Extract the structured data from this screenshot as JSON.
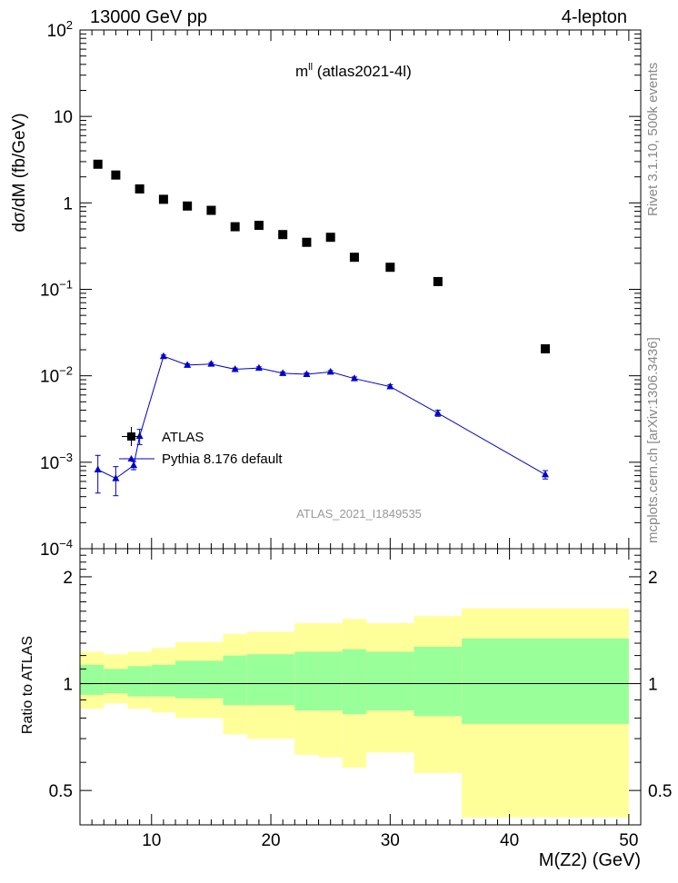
{
  "header": {
    "left": "13000 GeV pp",
    "right": "4-lepton"
  },
  "side_labels": {
    "rivet": "Rivet 3.1.10,  500k events",
    "mcplots": "mcplots.cern.ch [arXiv:1306.3436]"
  },
  "plot_title": {
    "main": "m",
    "sup": "ll",
    "suffix": " (atlas2021-4l)"
  },
  "analysis_label": "ATLAS_2021_I1849535",
  "legend": {
    "data": "ATLAS",
    "mc": "Pythia 8.176 default"
  },
  "axes": {
    "main_ylabel": "dσ/dM (fb/GeV)",
    "ratio_ylabel": "Ratio to ATLAS",
    "xlabel": "M(Z2) (GeV)"
  },
  "tick_labels": {
    "x": [
      "10",
      "20",
      "30",
      "40",
      "50"
    ],
    "main_y": [
      {
        "base": "10",
        "exp": "2"
      },
      {
        "base": "10",
        "exp": ""
      },
      {
        "base": "1",
        "exp": ""
      },
      {
        "base": "10",
        "exp": "−1"
      },
      {
        "base": "10",
        "exp": "−2"
      },
      {
        "base": "10",
        "exp": "−3"
      },
      {
        "base": "10",
        "exp": "−4"
      }
    ],
    "ratio_y": [
      "2",
      "1",
      "0.5"
    ]
  },
  "colors": {
    "data": "#000000",
    "mc": "#0000cc",
    "band_inner": "#99ff99",
    "band_outer": "#ffff99",
    "side_text": "#888888"
  },
  "chart_data": [
    {
      "type": "scatter",
      "role": "main",
      "xlim": [
        4,
        51
      ],
      "ylim": [
        0.0001,
        100
      ],
      "yscale": "log",
      "series": [
        {
          "name": "ATLAS",
          "marker": "square",
          "x": [
            5.5,
            7,
            9,
            11,
            13,
            15,
            17,
            19,
            21,
            23,
            25,
            27,
            30,
            34,
            43
          ],
          "y": [
            2.8,
            2.1,
            1.45,
            1.1,
            0.92,
            0.82,
            0.53,
            0.55,
            0.43,
            0.35,
            0.4,
            0.235,
            0.18,
            0.123,
            0.0205
          ]
        },
        {
          "name": "Pythia 8.176 default",
          "marker": "triangle",
          "x": [
            5.5,
            7,
            8.5,
            9,
            11,
            13,
            15,
            17,
            19,
            21,
            23,
            25,
            27,
            30,
            34,
            43
          ],
          "y": [
            0.00082,
            0.00065,
            0.00092,
            0.002,
            0.0168,
            0.0133,
            0.0137,
            0.0119,
            0.0123,
            0.0107,
            0.0104,
            0.0111,
            0.0093,
            0.0075,
            0.0037,
            0.00072
          ],
          "yerr": [
            0.00038,
            0.00024,
            0.0001,
            0.0004,
            0.0006,
            0.0005,
            0.0005,
            0.0004,
            0.0004,
            0.0004,
            0.0004,
            0.0004,
            0.0004,
            0.0004,
            0.0003,
            8e-05
          ]
        }
      ]
    },
    {
      "type": "area",
      "role": "ratio",
      "xlim": [
        4,
        51
      ],
      "ylim": [
        0.4,
        2.4
      ],
      "yscale": "log",
      "reference_line": 1,
      "bins": [
        {
          "lo": 4,
          "hi": 6,
          "inner": [
            0.93,
            1.13
          ],
          "outer": [
            0.85,
            1.23
          ]
        },
        {
          "lo": 6,
          "hi": 8,
          "inner": [
            0.94,
            1.1
          ],
          "outer": [
            0.88,
            1.21
          ]
        },
        {
          "lo": 8,
          "hi": 10,
          "inner": [
            0.92,
            1.12
          ],
          "outer": [
            0.85,
            1.23
          ]
        },
        {
          "lo": 10,
          "hi": 12,
          "inner": [
            0.92,
            1.13
          ],
          "outer": [
            0.83,
            1.26
          ]
        },
        {
          "lo": 12,
          "hi": 16,
          "inner": [
            0.91,
            1.16
          ],
          "outer": [
            0.8,
            1.31
          ]
        },
        {
          "lo": 16,
          "hi": 18,
          "inner": [
            0.87,
            1.2
          ],
          "outer": [
            0.72,
            1.38
          ]
        },
        {
          "lo": 18,
          "hi": 22,
          "inner": [
            0.87,
            1.21
          ],
          "outer": [
            0.7,
            1.4
          ]
        },
        {
          "lo": 22,
          "hi": 24,
          "inner": [
            0.84,
            1.23
          ],
          "outer": [
            0.63,
            1.48
          ]
        },
        {
          "lo": 24,
          "hi": 26,
          "inner": [
            0.84,
            1.23
          ],
          "outer": [
            0.62,
            1.48
          ]
        },
        {
          "lo": 26,
          "hi": 28,
          "inner": [
            0.82,
            1.25
          ],
          "outer": [
            0.58,
            1.52
          ]
        },
        {
          "lo": 28,
          "hi": 32,
          "inner": [
            0.84,
            1.23
          ],
          "outer": [
            0.64,
            1.48
          ]
        },
        {
          "lo": 32,
          "hi": 36,
          "inner": [
            0.81,
            1.27
          ],
          "outer": [
            0.56,
            1.55
          ]
        },
        {
          "lo": 36,
          "hi": 50,
          "inner": [
            0.77,
            1.34
          ],
          "outer": [
            0.42,
            1.63
          ]
        }
      ]
    }
  ]
}
